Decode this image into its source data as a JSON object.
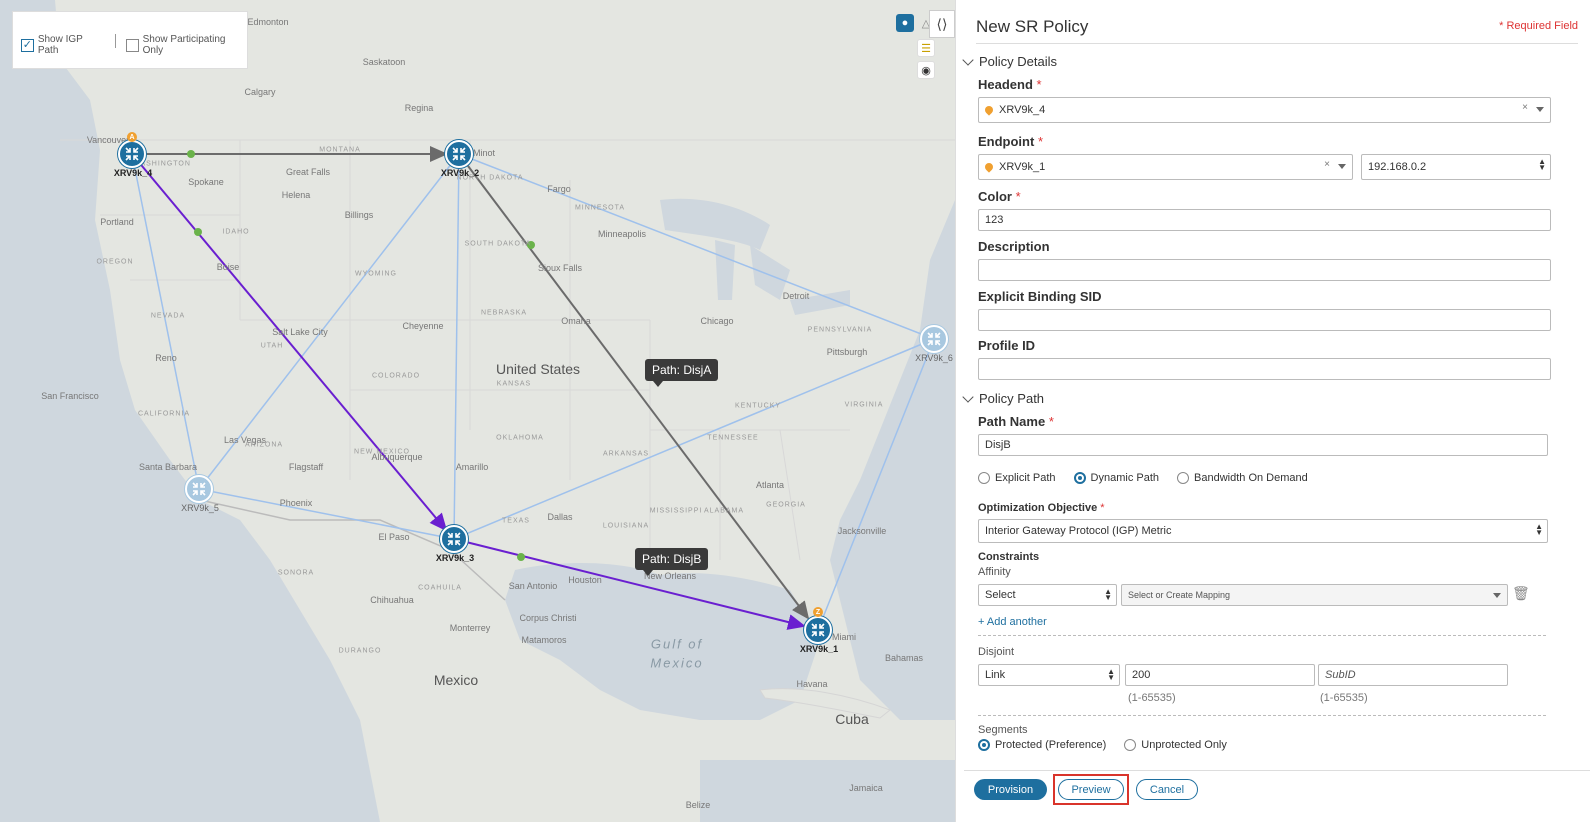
{
  "map": {
    "options": {
      "show_igp_path": {
        "label": "Show IGP Path",
        "checked": true
      },
      "show_participating_only": {
        "label": "Show Participating Only",
        "checked": false
      }
    },
    "tools": [
      "globe-icon",
      "topology-icon",
      "layers-icon",
      "eye-icon"
    ],
    "places": {
      "cities": [
        "Edmonton",
        "Calgary",
        "Saskatoon",
        "Regina",
        "Vancouver",
        "Spokane",
        "Great Falls",
        "Helena",
        "Billings",
        "Minot",
        "Fargo",
        "Portland",
        "Boise",
        "Salt Lake City",
        "Cheyenne",
        "Reno",
        "San Francisco",
        "Las Vegas",
        "Santa Barbara",
        "Flagstaff",
        "Phoenix",
        "Albuquerque",
        "Amarillo",
        "El Paso",
        "Chihuahua",
        "Dallas",
        "San Antonio",
        "Houston",
        "New Orleans",
        "Corpus Christi",
        "Monterrey",
        "Matamoros",
        "Sioux Falls",
        "Minneapolis",
        "Omaha",
        "Chicago",
        "Detroit",
        "Pittsburgh",
        "Atlanta",
        "Jacksonville",
        "Miami",
        "Bahamas",
        "Havana",
        "Jamaica",
        "Belize"
      ],
      "states": [
        "WASHINGTON",
        "OREGON",
        "IDAHO",
        "MONTANA",
        "NORTH DAKOTA",
        "SOUTH DAKOTA",
        "MINNESOTA",
        "WYOMING",
        "NEBRASKA",
        "NEVADA",
        "UTAH",
        "COLORADO",
        "KANSAS",
        "CALIFORNIA",
        "ARIZONA",
        "NEW MEXICO",
        "OKLAHOMA",
        "TEXAS",
        "ARKANSAS",
        "TENNESSEE",
        "KENTUCKY",
        "VIRGINIA",
        "PENNSYLVANIA",
        "GEORGIA",
        "ALABAMA",
        "MISSISSIPPI",
        "LOUISIANA",
        "SONORA",
        "COAHUILA",
        "DURANGO"
      ],
      "country_us": "United States",
      "country_mexico": "Mexico",
      "country_cuba": "Cuba",
      "sea_1": "Gulf of",
      "sea_2": "Mexico"
    },
    "nodes": [
      {
        "name": "XRV9k_4",
        "badge": "A",
        "active": true
      },
      {
        "name": "XRV9k_2",
        "badge": "",
        "active": true
      },
      {
        "name": "XRV9k_3",
        "badge": "",
        "active": true
      },
      {
        "name": "XRV9k_1",
        "badge": "Z",
        "active": true
      },
      {
        "name": "XRV9k_5",
        "badge": "",
        "active": false
      },
      {
        "name": "XRV9k_6",
        "badge": "",
        "active": false
      }
    ],
    "tooltips": {
      "disja": "Path: DisjA",
      "disjb": "Path: DisjB"
    },
    "colors": {
      "path_a": "#6b6b6b",
      "path_b": "#6a1fd0",
      "links": "#9fc1ec",
      "node": "#1e6f9f",
      "waypoint": "#6ab34a"
    }
  },
  "panel": {
    "title": "New SR Policy",
    "required": "* Required Field",
    "policy_details": {
      "section": "Policy Details",
      "headend_label": "Headend",
      "headend_value": "XRV9k_4",
      "endpoint_label": "Endpoint",
      "endpoint_value": "XRV9k_1",
      "endpoint_ip": "192.168.0.2",
      "color_label": "Color",
      "color_value": "123",
      "description_label": "Description",
      "description_value": "",
      "binding_sid_label": "Explicit Binding SID",
      "binding_sid_value": "",
      "profile_id_label": "Profile ID",
      "profile_id_value": ""
    },
    "policy_path": {
      "section": "Policy Path",
      "path_name_label": "Path Name",
      "path_name_value": "DisjB",
      "path_types": [
        "Explicit Path",
        "Dynamic Path",
        "Bandwidth On Demand"
      ],
      "selected_path_type": "Dynamic Path",
      "optimization_label": "Optimization Objective",
      "optimization_value": "Interior Gateway Protocol (IGP) Metric",
      "constraints_label": "Constraints",
      "affinity_label": "Affinity",
      "affinity_select": "Select",
      "affinity_mapping_placeholder": "Select or Create Mapping",
      "add_another": "+ Add another",
      "disjoint_label": "Disjoint",
      "disjoint_type": "Link",
      "disjoint_group": "200",
      "disjoint_subid_placeholder": "SubID",
      "range_hint": "(1-65535)",
      "segments_label": "Segments",
      "segment_options": [
        "Protected (Preference)",
        "Unprotected Only"
      ],
      "selected_segment": "Protected (Preference)"
    },
    "buttons": {
      "provision": "Provision",
      "preview": "Preview",
      "cancel": "Cancel"
    }
  }
}
